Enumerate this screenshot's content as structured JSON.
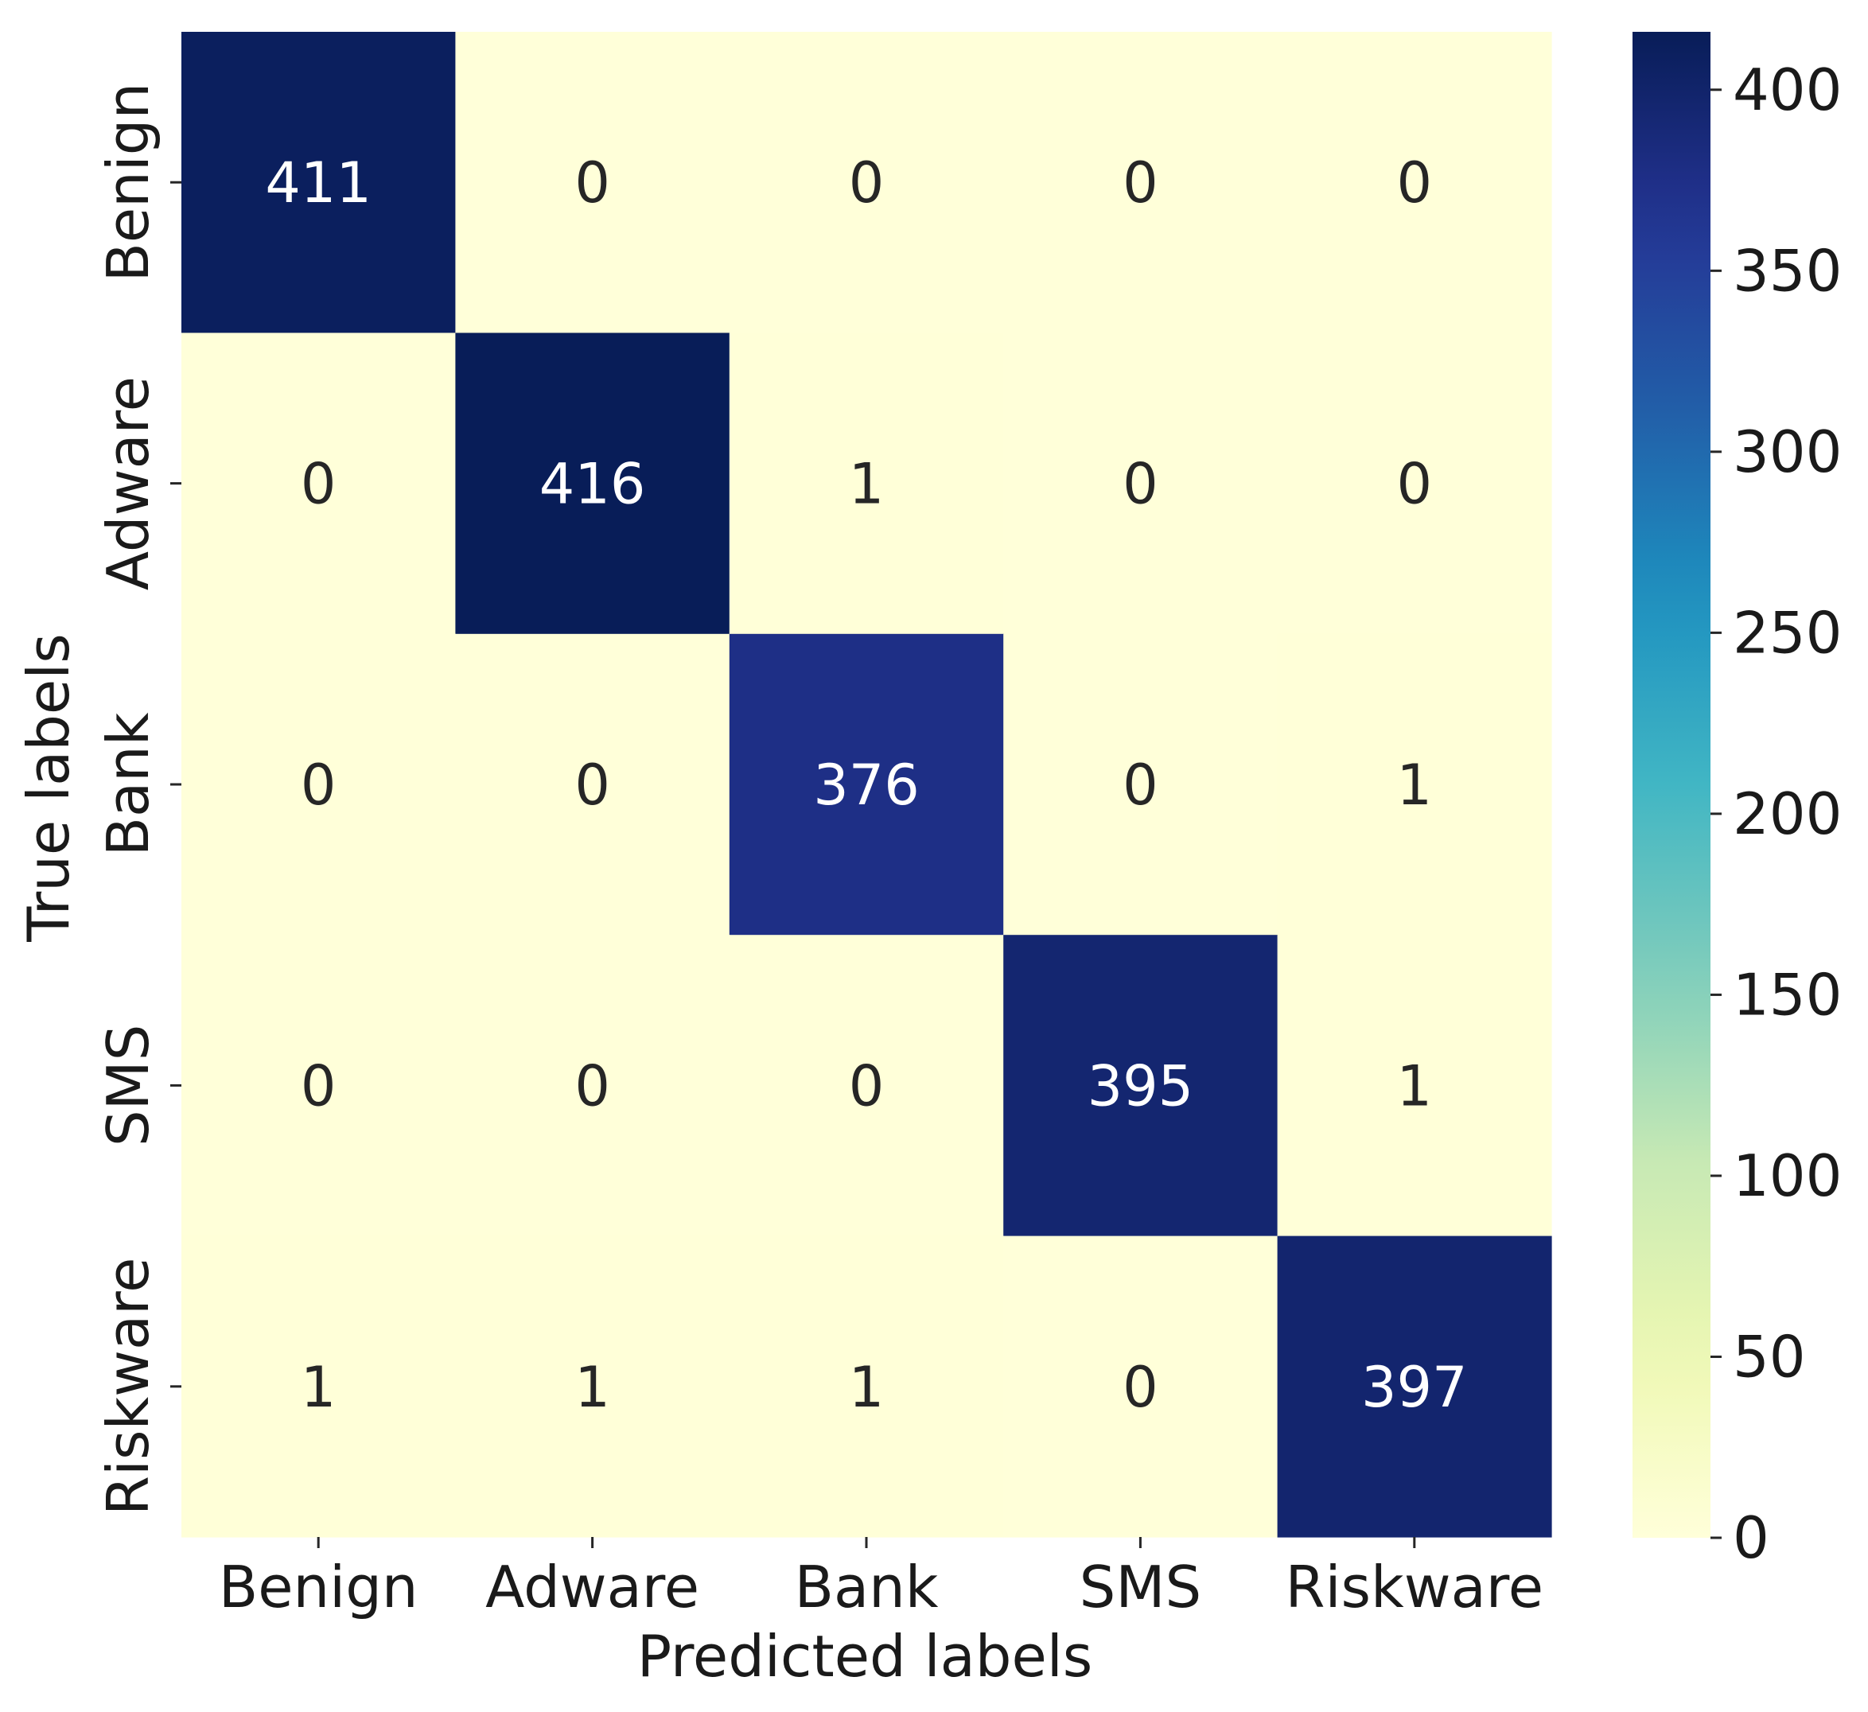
{
  "chart_data": {
    "type": "heatmap",
    "title": "",
    "xlabel": "Predicted labels",
    "ylabel": "True labels",
    "x_categories": [
      "Benign",
      "Adware",
      "Bank",
      "SMS",
      "Riskware"
    ],
    "y_categories": [
      "Benign",
      "Adware",
      "Bank",
      "SMS",
      "Riskware"
    ],
    "values": [
      [
        411,
        0,
        0,
        0,
        0
      ],
      [
        0,
        416,
        1,
        0,
        0
      ],
      [
        0,
        0,
        376,
        0,
        1
      ],
      [
        0,
        0,
        0,
        395,
        1
      ],
      [
        1,
        1,
        1,
        0,
        397
      ]
    ],
    "colorbar": {
      "colormap": "YlGnBu",
      "range": [
        0,
        416
      ],
      "ticks": [
        0,
        50,
        100,
        150,
        200,
        250,
        300,
        350,
        400
      ]
    },
    "grid": false,
    "legend": "none"
  }
}
